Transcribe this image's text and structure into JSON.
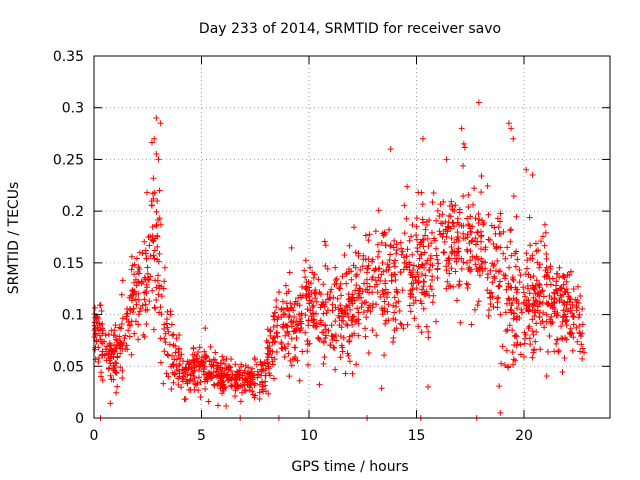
{
  "chart_data": {
    "type": "scatter",
    "title": "Day 233 of 2014, SRMTID for receiver savo",
    "xlabel": "GPS time / hours",
    "ylabel": "SRMTID / TECUs",
    "xlim": [
      0,
      24
    ],
    "ylim": [
      0,
      0.35
    ],
    "xticks": [
      0,
      5,
      10,
      15,
      20
    ],
    "xtick_labels": [
      "0",
      "5",
      "10",
      "15",
      "20"
    ],
    "yticks": [
      0,
      0.05,
      0.1,
      0.15,
      0.2,
      0.25,
      0.3,
      0.35
    ],
    "ytick_labels": [
      "0",
      "0.05",
      "0.1",
      "0.15",
      "0.2",
      "0.25",
      "0.3",
      "0.35"
    ],
    "grid": true,
    "marker": "+",
    "color": "#ff0000",
    "series": [
      {
        "name": "SRMTID",
        "envelope": {
          "hours": [
            0.0,
            0.5,
            1.0,
            1.5,
            2.0,
            2.5,
            2.8,
            3.0,
            3.3,
            3.7,
            4.0,
            4.5,
            5.0,
            5.5,
            6.0,
            6.5,
            7.0,
            7.5,
            8.0,
            8.5,
            9.0,
            9.5,
            10.0,
            10.5,
            11.0,
            11.5,
            12.0,
            12.5,
            13.0,
            13.5,
            14.0,
            14.5,
            15.0,
            15.5,
            16.0,
            16.5,
            17.0,
            17.5,
            18.0,
            18.5,
            19.0,
            19.5,
            20.0,
            20.5,
            21.0,
            21.5,
            22.0,
            22.5,
            22.8
          ],
          "median": [
            0.09,
            0.065,
            0.055,
            0.1,
            0.12,
            0.13,
            0.17,
            0.15,
            0.09,
            0.06,
            0.045,
            0.045,
            0.05,
            0.045,
            0.04,
            0.035,
            0.035,
            0.035,
            0.05,
            0.09,
            0.1,
            0.085,
            0.1,
            0.1,
            0.11,
            0.105,
            0.115,
            0.12,
            0.13,
            0.13,
            0.135,
            0.14,
            0.145,
            0.15,
            0.16,
            0.17,
            0.17,
            0.18,
            0.16,
            0.14,
            0.13,
            0.12,
            0.11,
            0.12,
            0.12,
            0.115,
            0.1,
            0.1,
            0.06
          ],
          "spread": [
            0.03,
            0.025,
            0.025,
            0.035,
            0.04,
            0.05,
            0.07,
            0.08,
            0.04,
            0.025,
            0.02,
            0.02,
            0.02,
            0.02,
            0.015,
            0.015,
            0.015,
            0.015,
            0.02,
            0.03,
            0.035,
            0.035,
            0.04,
            0.04,
            0.04,
            0.04,
            0.04,
            0.045,
            0.05,
            0.05,
            0.05,
            0.05,
            0.05,
            0.05,
            0.05,
            0.05,
            0.055,
            0.055,
            0.05,
            0.05,
            0.06,
            0.06,
            0.045,
            0.045,
            0.045,
            0.04,
            0.035,
            0.03,
            0.02
          ]
        },
        "points_per_hour": 80,
        "peaks": [
          {
            "x": 2.9,
            "y": 0.29
          },
          {
            "x": 3.1,
            "y": 0.285
          },
          {
            "x": 2.8,
            "y": 0.27
          },
          {
            "x": 3.0,
            "y": 0.25
          },
          {
            "x": 3.05,
            "y": 0.22
          },
          {
            "x": 13.8,
            "y": 0.26
          },
          {
            "x": 15.3,
            "y": 0.27
          },
          {
            "x": 16.4,
            "y": 0.25
          },
          {
            "x": 17.1,
            "y": 0.28
          },
          {
            "x": 17.2,
            "y": 0.265
          },
          {
            "x": 17.9,
            "y": 0.305
          },
          {
            "x": 19.3,
            "y": 0.285
          },
          {
            "x": 19.4,
            "y": 0.28
          },
          {
            "x": 19.5,
            "y": 0.27
          },
          {
            "x": 20.1,
            "y": 0.24
          },
          {
            "x": 20.4,
            "y": 0.235
          }
        ],
        "baseline_points": [
          {
            "x": 0.3,
            "y": 0.0
          },
          {
            "x": 6.8,
            "y": 0.0
          },
          {
            "x": 8.6,
            "y": 0.0
          },
          {
            "x": 12.7,
            "y": 0.0
          },
          {
            "x": 15.2,
            "y": 0.0
          },
          {
            "x": 17.8,
            "y": 0.0
          },
          {
            "x": 18.9,
            "y": 0.005
          }
        ]
      }
    ]
  }
}
